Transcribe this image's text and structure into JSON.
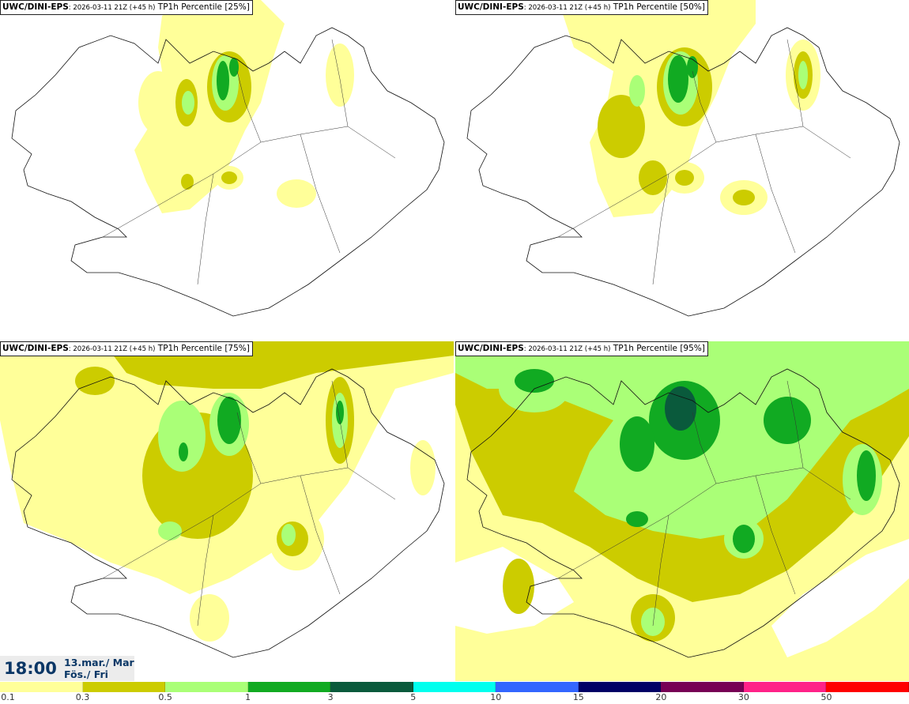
{
  "panels": [
    {
      "model": "UWC/DINI-EPS",
      "run": ": 2026-03-11 21Z (+45 h)",
      "field": " TP1h Percentile [25%]"
    },
    {
      "model": "UWC/DINI-EPS",
      "run": ": 2026-03-11 21Z (+45 h)",
      "field": " TP1h Percentile [50%]"
    },
    {
      "model": "UWC/DINI-EPS",
      "run": ": 2026-03-11 21Z (+45 h)",
      "field": " TP1h Percentile [75%]"
    },
    {
      "model": "UWC/DINI-EPS",
      "run": ": 2026-03-11 21Z (+45 h)",
      "field": " TP1h Percentile [95%]"
    }
  ],
  "valid_time": {
    "time": "18:00",
    "date_line1": "13.mar./ Mar",
    "date_line2": "Fös./ Fri"
  },
  "legend": {
    "colors": [
      "#ffff99",
      "#cccc00",
      "#aaff77",
      "#11aa22",
      "#0a5a3c",
      "#00ffee",
      "#3366ff",
      "#000066",
      "#770055",
      "#ff2288",
      "#ff0000"
    ],
    "ticks": [
      "0.1",
      "0.3",
      "0.5",
      "1",
      "3",
      "5",
      "10",
      "15",
      "20",
      "30",
      "50"
    ]
  }
}
